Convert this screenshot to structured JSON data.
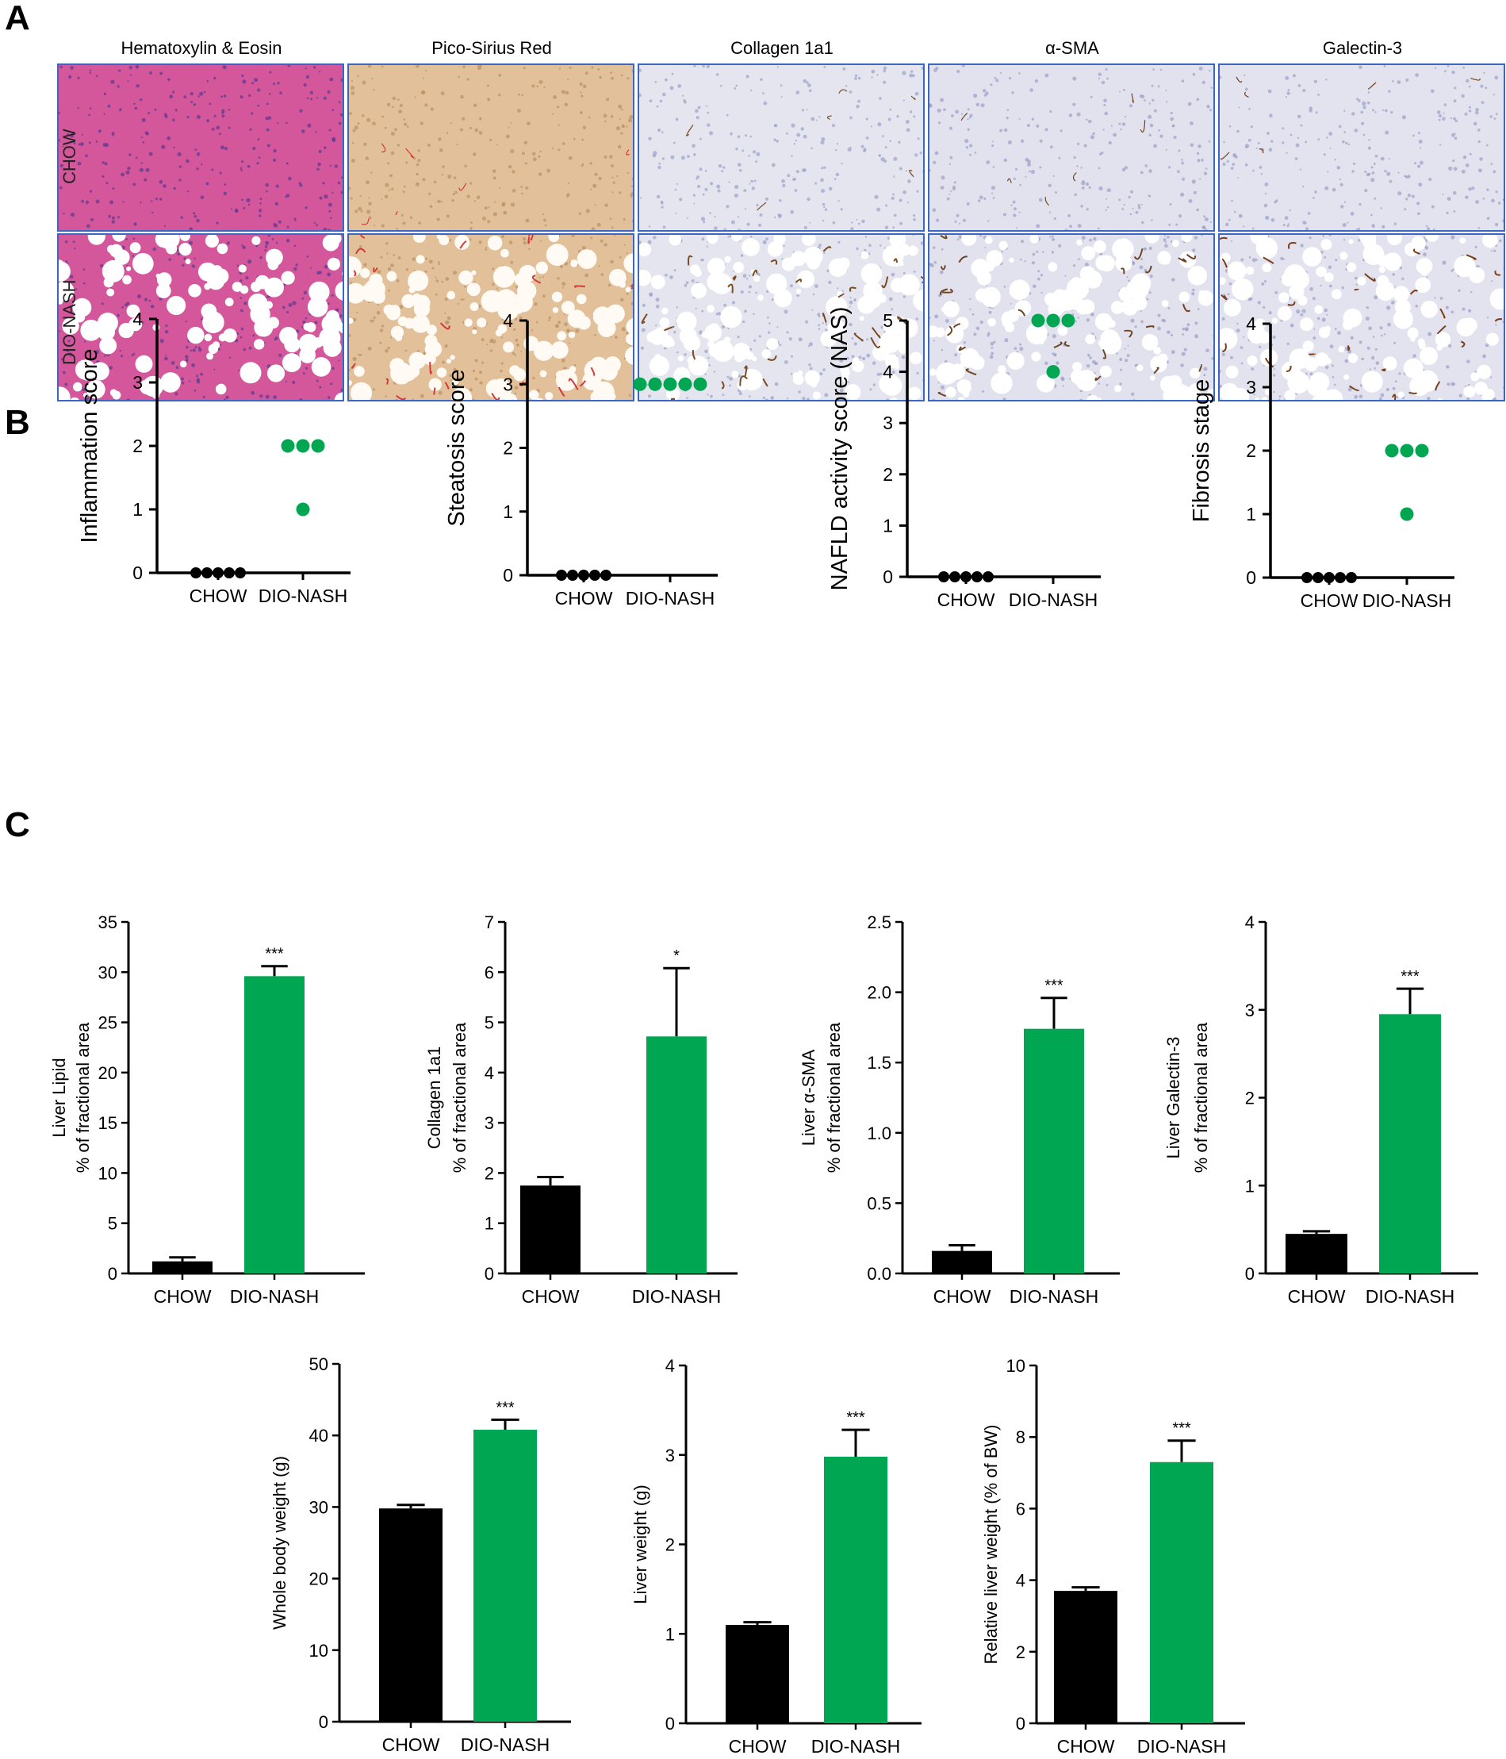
{
  "panel_labels": [
    "A",
    "B",
    "C"
  ],
  "histology": {
    "columns": [
      "Hematoxylin & Eosin",
      "Pico-Sirius Red",
      "Collagen 1a1",
      "α-SMA",
      "Galectin-3"
    ],
    "rows": [
      "CHOW",
      "DIO-NASH"
    ]
  },
  "colors": {
    "chow": "#000000",
    "nash": "#00a651",
    "tile_border": "#3a66c4"
  },
  "chart_data": [
    {
      "type": "scatter",
      "ylabel": "Inflammation score",
      "categories": [
        "CHOW",
        "DIO-NASH"
      ],
      "ylim": [
        0,
        4
      ],
      "yticks": [
        0,
        1,
        2,
        3,
        4
      ],
      "series": [
        {
          "name": "CHOW",
          "values": [
            0,
            0,
            0,
            0,
            0
          ]
        },
        {
          "name": "DIO-NASH",
          "values": [
            2,
            2,
            2,
            1
          ]
        }
      ]
    },
    {
      "type": "scatter",
      "ylabel": "Steatosis score",
      "categories": [
        "CHOW",
        "DIO-NASH"
      ],
      "ylim": [
        0,
        4
      ],
      "yticks": [
        0,
        1,
        2,
        3,
        4
      ],
      "series": [
        {
          "name": "CHOW",
          "values": [
            0,
            0,
            0,
            0,
            0
          ]
        },
        {
          "name": "DIO-NASH",
          "values": [
            3,
            3,
            3,
            3,
            3
          ]
        }
      ]
    },
    {
      "type": "scatter",
      "ylabel": "NAFLD activity score (NAS)",
      "categories": [
        "CHOW",
        "DIO-NASH"
      ],
      "ylim": [
        0,
        5
      ],
      "yticks": [
        0,
        1,
        2,
        3,
        4,
        5
      ],
      "series": [
        {
          "name": "CHOW",
          "values": [
            0,
            0,
            0,
            0,
            0
          ]
        },
        {
          "name": "DIO-NASH",
          "values": [
            5,
            5,
            5,
            4
          ]
        }
      ]
    },
    {
      "type": "scatter",
      "ylabel": "Fibrosis stage",
      "categories": [
        "CHOW",
        "DIO-NASH"
      ],
      "ylim": [
        0,
        4
      ],
      "yticks": [
        0,
        1,
        2,
        3,
        4
      ],
      "series": [
        {
          "name": "CHOW",
          "values": [
            0,
            0,
            0,
            0,
            0
          ]
        },
        {
          "name": "DIO-NASH",
          "values": [
            2,
            2,
            2,
            1
          ]
        }
      ]
    },
    {
      "type": "bar",
      "ylabel": [
        "Liver Lipid",
        "% of fractional area"
      ],
      "categories": [
        "CHOW",
        "DIO-NASH"
      ],
      "ylim": [
        0,
        35
      ],
      "yticks": [
        "0",
        "5",
        "10",
        "15",
        "20",
        "25",
        "30",
        "35"
      ],
      "values": [
        1.2,
        29.6
      ],
      "errors": [
        0.4,
        1.0
      ],
      "significance": "***"
    },
    {
      "type": "bar",
      "ylabel": [
        "Collagen 1a1",
        "% of fractional area"
      ],
      "categories": [
        "CHOW",
        "DIO-NASH"
      ],
      "ylim": [
        0,
        7
      ],
      "yticks": [
        "0",
        "1",
        "2",
        "3",
        "4",
        "5",
        "6",
        "7"
      ],
      "values": [
        1.75,
        4.72
      ],
      "errors": [
        0.17,
        1.36
      ],
      "significance": "*"
    },
    {
      "type": "bar",
      "ylabel": [
        "Liver α-SMA",
        "% of fractional area"
      ],
      "categories": [
        "CHOW",
        "DIO-NASH"
      ],
      "ylim": [
        0,
        2.5
      ],
      "yticks": [
        "0.0",
        "0.5",
        "1.0",
        "1.5",
        "2.0",
        "2.5"
      ],
      "values": [
        0.16,
        1.74
      ],
      "errors": [
        0.04,
        0.22
      ],
      "significance": "***"
    },
    {
      "type": "bar",
      "ylabel": [
        "Liver Galectin-3",
        "% of fractional area"
      ],
      "categories": [
        "CHOW",
        "DIO-NASH"
      ],
      "ylim": [
        0,
        4
      ],
      "yticks": [
        "0",
        "1",
        "2",
        "3",
        "4"
      ],
      "values": [
        0.45,
        2.95
      ],
      "errors": [
        0.03,
        0.29
      ],
      "significance": "***"
    },
    {
      "type": "bar",
      "ylabel": [
        "Whole body weight (g)"
      ],
      "categories": [
        "CHOW",
        "DIO-NASH"
      ],
      "ylim": [
        0,
        50
      ],
      "yticks": [
        "0",
        "10",
        "20",
        "30",
        "40",
        "50"
      ],
      "values": [
        29.8,
        40.8
      ],
      "errors": [
        0.5,
        1.4
      ],
      "significance": "***"
    },
    {
      "type": "bar",
      "ylabel": [
        "Liver weight (g)"
      ],
      "categories": [
        "CHOW",
        "DIO-NASH"
      ],
      "ylim": [
        0,
        4
      ],
      "yticks": [
        "0",
        "1",
        "2",
        "3",
        "4"
      ],
      "values": [
        1.1,
        2.98
      ],
      "errors": [
        0.03,
        0.3
      ],
      "significance": "***"
    },
    {
      "type": "bar",
      "ylabel": [
        "Relative liver weight (% of BW)"
      ],
      "categories": [
        "CHOW",
        "DIO-NASH"
      ],
      "ylim": [
        0,
        10
      ],
      "yticks": [
        "0",
        "2",
        "4",
        "6",
        "8",
        "10"
      ],
      "values": [
        3.7,
        7.3
      ],
      "errors": [
        0.1,
        0.6
      ],
      "significance": "***"
    }
  ]
}
